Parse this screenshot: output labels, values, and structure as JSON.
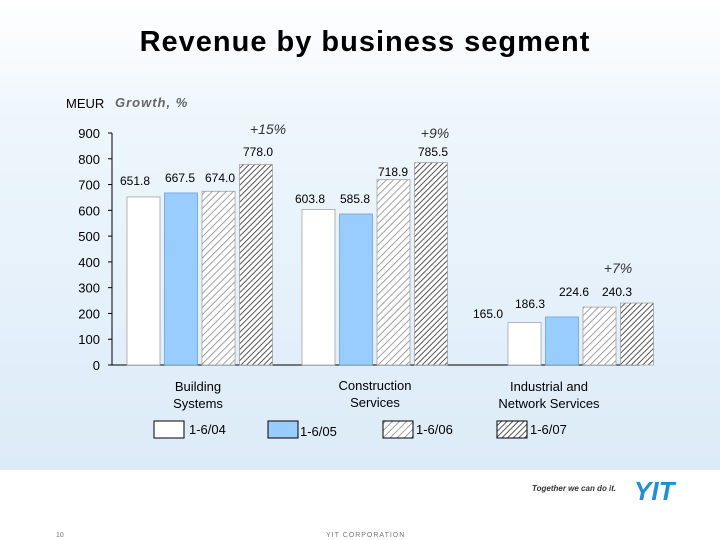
{
  "title": "Revenue by business segment",
  "unit": "MEUR",
  "growth_label": "Growth, %",
  "footer": {
    "tagline": "Together we can do it.",
    "logo": "YIT",
    "page_number": "10",
    "corporation": "YIT CORPORATION"
  },
  "chart_data": {
    "type": "bar",
    "categories": [
      "Building Systems",
      "Construction Services",
      "Industrial and Network Services"
    ],
    "series": [
      {
        "name": "1-6/04",
        "values": [
          651.8,
          603.8,
          165.0
        ],
        "fill": "#ffffff",
        "pattern": "none"
      },
      {
        "name": "1-6/05",
        "values": [
          667.5,
          585.8,
          186.3
        ],
        "fill": "#99ccff",
        "pattern": "none"
      },
      {
        "name": "1-6/06",
        "values": [
          674.0,
          718.9,
          224.6
        ],
        "fill": "#ffffff",
        "pattern": "diagonal-light"
      },
      {
        "name": "1-6/07",
        "values": [
          778.0,
          785.5,
          240.3
        ],
        "fill": "#ffffff",
        "pattern": "diagonal-dark"
      }
    ],
    "value_labels": [
      [
        "651.8",
        "667.5",
        "674.0",
        "778.0"
      ],
      [
        "603.8",
        "585.8",
        "718.9",
        "785.5"
      ],
      [
        "165.0",
        "186.3",
        "224.6",
        "240.3"
      ]
    ],
    "growth": [
      "+15%",
      "+9%",
      "+7%"
    ],
    "yticks": [
      0,
      100,
      200,
      300,
      400,
      500,
      600,
      700,
      800,
      900
    ],
    "ylim": [
      0,
      900
    ],
    "legend_placement": "bottom",
    "grid": false
  }
}
